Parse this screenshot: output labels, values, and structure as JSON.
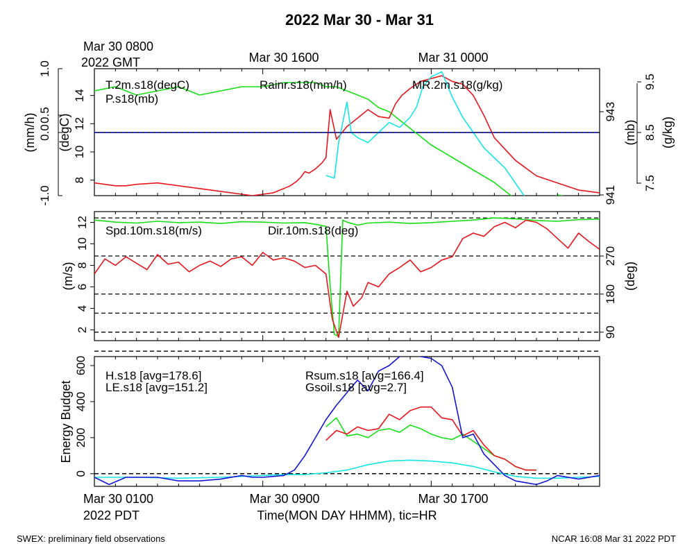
{
  "title": "2022 Mar 30 - Mar 31",
  "footer": {
    "left": "SWEX: preliminary field observations",
    "right": "NCAR 16:08 Mar 31 2022 PDT"
  },
  "top_time_axis": {
    "start_line1": "Mar 30 0800",
    "start_line2": "2022 GMT",
    "labels": [
      "Mar 30 1600",
      "Mar 31 0000"
    ]
  },
  "bottom_time_axis": {
    "start_line1": "Mar 30 0100",
    "start_line2": "2022 PDT",
    "labels": [
      "Mar 30 0900",
      "Mar 30 1700"
    ],
    "title": "Time(MON DAY HHMM), tic=HR"
  },
  "colors": {
    "red": "#e8141c",
    "green": "#14e014",
    "blue": "#1414d8",
    "cyan": "#14e6e6",
    "black": "#000000"
  },
  "chart_data": [
    {
      "type": "line",
      "panel": "top",
      "x_unit": "hours since Mar 30 0100 PDT",
      "xlim": [
        0,
        24
      ],
      "axes": {
        "rain": {
          "label": "(mm/h)",
          "ylim": [
            -1.0,
            1.0
          ],
          "ticks": [
            "-1.0",
            "0.0",
            "0.5",
            "1.0"
          ]
        },
        "temp": {
          "label": "(degC)",
          "ylim": [
            6.9,
            15.9
          ],
          "ticks": [
            "8",
            "10",
            "12",
            "14"
          ]
        },
        "pres": {
          "label": "(mb)",
          "ticks": [
            "941",
            "943"
          ]
        },
        "mr": {
          "label": "(g/kg)",
          "ticks": [
            "7.5",
            "8.5",
            "9.5"
          ]
        }
      },
      "legend": [
        {
          "text": "T.2m.s18(degC)",
          "color": "red"
        },
        {
          "text": "P.s18(mb)",
          "color": "green"
        },
        {
          "text": "Rainr.s18(mm/h)",
          "color": "blue"
        },
        {
          "text": "MR.2m.s18(g/kg)",
          "color": "cyan"
        }
      ],
      "series": [
        {
          "name": "T.2m.s18(degC)",
          "color": "red",
          "x": [
            0,
            0.5,
            1,
            1.5,
            2,
            3,
            4,
            5,
            6,
            7,
            7.5,
            8,
            8.5,
            9,
            9.3,
            9.6,
            9.8,
            10,
            10.2,
            10.5,
            10.8,
            11,
            11.2,
            11.5,
            12,
            12.5,
            13,
            13.5,
            14,
            14.3,
            14.6,
            15,
            15.5,
            16,
            16.5,
            17,
            17.5,
            18,
            18.5,
            19,
            19.5,
            20,
            21,
            22,
            23,
            24
          ],
          "y": [
            7.8,
            7.7,
            7.6,
            7.6,
            7.7,
            7.8,
            7.6,
            7.4,
            7.2,
            7.0,
            6.9,
            7.0,
            7.1,
            7.4,
            7.6,
            7.9,
            8.2,
            8.6,
            8.5,
            8.8,
            9.2,
            9.6,
            13.0,
            10.9,
            11.8,
            12.4,
            13.0,
            12.5,
            12.4,
            13.4,
            14.0,
            14.5,
            15.0,
            15.2,
            15.4,
            15.0,
            14.8,
            14.0,
            12.6,
            11.0,
            10.2,
            9.4,
            8.3,
            7.8,
            7.3,
            7.1
          ]
        },
        {
          "name": "P.s18(mb)",
          "color": "green",
          "x": [
            0,
            1,
            2,
            3,
            4,
            5,
            6,
            7,
            8,
            9,
            10,
            10.5,
            11,
            11.5,
            12,
            12.5,
            13,
            13.5,
            14,
            15,
            16,
            17,
            18,
            19,
            20,
            21,
            22,
            23,
            24
          ],
          "y": [
            943.5,
            943.6,
            943.4,
            943.5,
            943.6,
            943.4,
            943.5,
            943.6,
            943.6,
            943.7,
            943.7,
            943.7,
            943.6,
            943.6,
            943.5,
            943.4,
            943.3,
            943.1,
            943.0,
            942.6,
            942.2,
            941.9,
            941.6,
            941.3,
            940.9,
            940.6,
            941.0,
            940.9,
            940.8
          ]
        },
        {
          "name": "MR.2m.s18(g/kg)",
          "color": "cyan",
          "x": [
            11,
            11.4,
            11.6,
            12.0,
            12.2,
            12.5,
            13,
            13.5,
            14,
            14.5,
            15,
            15.3,
            15.6,
            16,
            16.5,
            17,
            17.5,
            18,
            18.5,
            19,
            19.5,
            20,
            20.5
          ],
          "y": [
            7.65,
            7.6,
            8.3,
            9.1,
            8.5,
            8.4,
            8.3,
            8.5,
            8.7,
            8.6,
            8.8,
            9.0,
            9.4,
            9.6,
            9.7,
            9.2,
            8.8,
            8.5,
            8.2,
            8.0,
            7.8,
            7.5,
            7.2
          ]
        },
        {
          "name": "Rainr.s18(mm/h)",
          "color": "blue",
          "x": [
            0,
            24
          ],
          "y": [
            0,
            0
          ]
        }
      ]
    },
    {
      "type": "line",
      "panel": "middle",
      "x_unit": "hours since Mar 30 0100 PDT",
      "xlim": [
        0,
        24
      ],
      "axes": {
        "speed": {
          "label": "(m/s)",
          "ylim": [
            1.0,
            13.0
          ],
          "ticks": [
            "2",
            "4",
            "6",
            "8",
            "10",
            "12"
          ]
        },
        "dir": {
          "label": "(deg)",
          "ylim": [
            70,
            375
          ],
          "ticks": [
            "90",
            "180",
            "270"
          ]
        }
      },
      "legend": [
        {
          "text": "Spd.10m.s18(m/s)",
          "color": "red"
        },
        {
          "text": "Dir.10m.s18(deg)",
          "color": "green"
        }
      ],
      "series": [
        {
          "name": "Spd.10m.s18(m/s)",
          "color": "red",
          "x": [
            0,
            0.5,
            1,
            1.5,
            2,
            2.5,
            3,
            3.5,
            4,
            4.5,
            5,
            5.5,
            6,
            6.5,
            7,
            7.5,
            8,
            8.5,
            9,
            9.5,
            10,
            10.5,
            11,
            11.3,
            11.6,
            12,
            12.3,
            12.7,
            13,
            13.5,
            14,
            14.5,
            15,
            15.5,
            16,
            16.5,
            17,
            17.5,
            18,
            18.5,
            19,
            19.5,
            20,
            20.5,
            21,
            21.5,
            22,
            22.5,
            23,
            23.5,
            24
          ],
          "y": [
            7.2,
            8.6,
            8.0,
            8.8,
            8.2,
            7.6,
            9.0,
            8.1,
            8.3,
            7.4,
            8.0,
            8.4,
            7.9,
            8.6,
            8.8,
            8.0,
            9.2,
            8.5,
            8.7,
            8.4,
            7.8,
            8.0,
            7.2,
            3.0,
            1.3,
            5.6,
            4.2,
            5.0,
            6.4,
            6.0,
            7.2,
            7.8,
            8.5,
            7.4,
            7.8,
            8.5,
            8.8,
            10.5,
            11.0,
            10.7,
            11.6,
            12.0,
            11.5,
            12.2,
            12.0,
            11.4,
            10.5,
            9.6,
            11.0,
            10.2,
            9.5
          ]
        },
        {
          "name": "Dir.10m.s18(deg)",
          "color": "green",
          "x": [
            0,
            1,
            2,
            3,
            4,
            5,
            6,
            7,
            8,
            9,
            10,
            10.5,
            11,
            11.2,
            11.4,
            11.6,
            11.8,
            12,
            12.5,
            13,
            14,
            15,
            16,
            17,
            18,
            19,
            20,
            21,
            22,
            23,
            24
          ],
          "y": [
            355,
            350,
            348,
            352,
            349,
            350,
            347,
            351,
            350,
            348,
            349,
            345,
            340,
            200,
            85,
            80,
            355,
            350,
            343,
            348,
            350,
            347,
            349,
            352,
            355,
            360,
            358,
            354,
            352,
            356,
            357
          ]
        },
        {
          "name": "",
          "color": "black",
          "x": [
            0,
            24
          ],
          "y": [
            2,
            2
          ]
        }
      ],
      "reference_lines_deg": [
        90,
        180,
        270,
        360
      ]
    },
    {
      "type": "line",
      "panel": "bottom",
      "x_unit": "hours since Mar 30 0100 PDT",
      "xlim": [
        0,
        24
      ],
      "axes": {
        "energy": {
          "label": "Energy Budget",
          "ylim": [
            -70,
            650
          ],
          "ticks": [
            "0",
            "200",
            "400",
            "600"
          ]
        }
      },
      "legend": [
        {
          "text": "H.s18 [avg=178.6]",
          "color": "red"
        },
        {
          "text": "LE.s18 [avg=151.2]",
          "color": "green"
        },
        {
          "text": "Rsum.s18 [avg=166.4]",
          "color": "blue"
        },
        {
          "text": "Gsoil.s18 [avg=2.7]",
          "color": "cyan"
        }
      ],
      "series": [
        {
          "name": "Rsum.s18 [avg=166.4]",
          "color": "blue",
          "x": [
            0,
            0.7,
            1.5,
            2,
            3,
            4,
            4.5,
            5,
            6,
            7,
            7.5,
            8,
            9,
            9.5,
            10,
            10.5,
            11,
            11.5,
            12,
            12.5,
            13,
            13.5,
            14,
            14.5,
            15,
            15.5,
            16,
            16.5,
            17,
            17.5,
            18,
            18.5,
            19,
            19.5,
            20,
            21,
            21.5,
            22,
            23,
            24
          ],
          "y": [
            -20,
            -60,
            -20,
            -20,
            -20,
            -40,
            -40,
            -40,
            -30,
            -10,
            -20,
            -20,
            -10,
            20,
            100,
            200,
            300,
            380,
            450,
            520,
            460,
            570,
            600,
            650,
            660,
            650,
            640,
            600,
            480,
            200,
            220,
            110,
            50,
            -10,
            -40,
            -60,
            -40,
            -10,
            -30,
            -10
          ]
        },
        {
          "name": "H.s18 [avg=178.6]",
          "color": "red",
          "x": [
            11,
            11.5,
            12,
            12.5,
            13,
            13.5,
            14,
            14.5,
            15,
            15.5,
            16,
            16.5,
            17,
            17.5,
            18,
            18.5,
            19,
            19.5,
            20,
            20.5,
            21
          ],
          "y": [
            185,
            240,
            220,
            260,
            240,
            250,
            330,
            300,
            350,
            370,
            370,
            310,
            300,
            210,
            240,
            160,
            100,
            80,
            40,
            20,
            20
          ]
        },
        {
          "name": "LE.s18 [avg=151.2]",
          "color": "green",
          "x": [
            11,
            11.5,
            12,
            12.5,
            13,
            13.5,
            14,
            14.5,
            15,
            15.5,
            16,
            16.5,
            17,
            17.5,
            18,
            18.5,
            19,
            19.5,
            20,
            20.5,
            21
          ],
          "y": [
            260,
            310,
            210,
            220,
            200,
            240,
            250,
            230,
            270,
            250,
            220,
            200,
            190,
            220,
            180,
            140,
            100,
            80,
            40,
            20,
            20
          ]
        },
        {
          "name": "Gsoil.s18 [avg=2.7]",
          "color": "cyan",
          "x": [
            0,
            2,
            4,
            6,
            8,
            9,
            10,
            11,
            12,
            13,
            14,
            15,
            16,
            17,
            18,
            19,
            20,
            21,
            22,
            23,
            24
          ],
          "y": [
            -20,
            -20,
            -25,
            -20,
            -10,
            -5,
            -5,
            5,
            20,
            50,
            70,
            75,
            70,
            60,
            40,
            10,
            -15,
            -25,
            -25,
            -20,
            -15
          ]
        },
        {
          "name": "",
          "color": "black",
          "x": [
            0,
            24
          ],
          "y": [
            0,
            0
          ]
        }
      ]
    }
  ]
}
